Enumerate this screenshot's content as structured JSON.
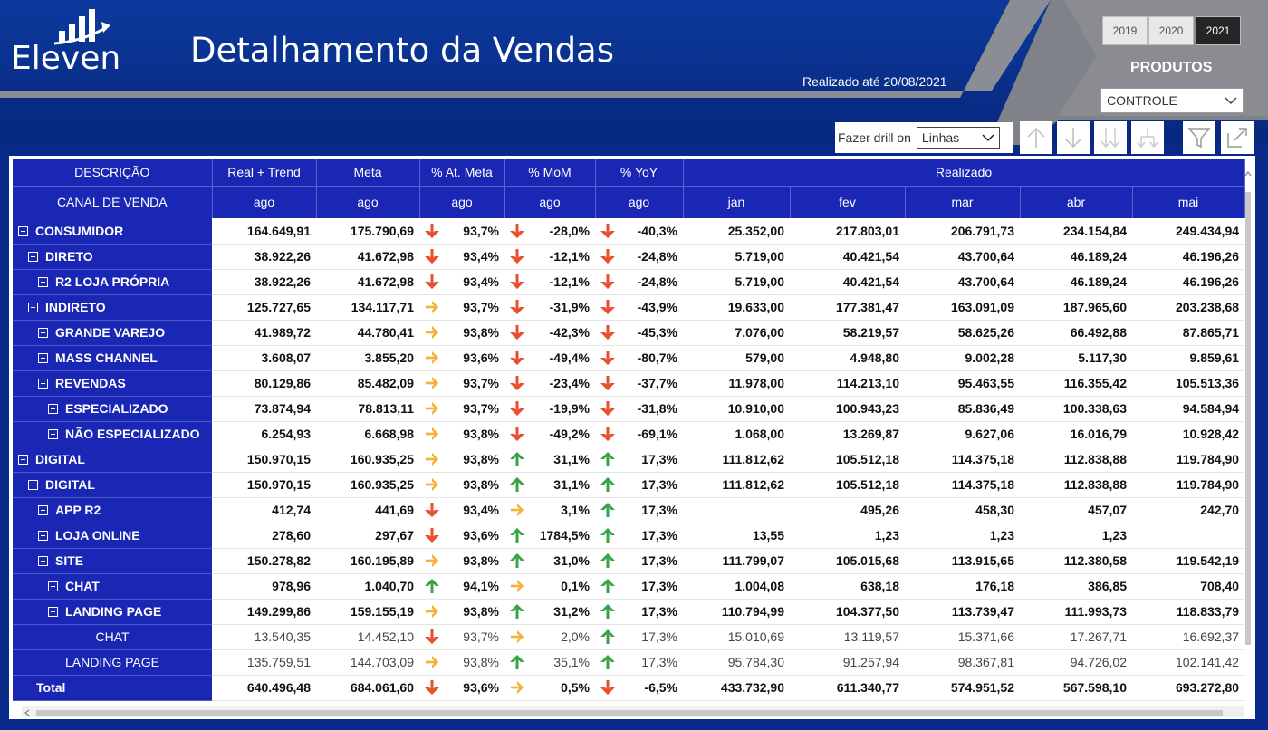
{
  "brand": {
    "name": "Eleven"
  },
  "header": {
    "title": "Detalhamento da Vendas",
    "realizado": "Realizado até 20/08/2021"
  },
  "years": [
    "2019",
    "2020",
    "2021"
  ],
  "active_year": "2021",
  "produtos": {
    "label": "PRODUTOS",
    "selected": "CONTROLE"
  },
  "drill": {
    "label": "Fazer drill on",
    "selected": "Linhas"
  },
  "colors": {
    "header_blue": "#1a27b5",
    "banner": "#0c3a9c",
    "up": "#3aa34a",
    "down": "#e94e2e",
    "side": "#f5b23a"
  },
  "table": {
    "header1": [
      "DESCRIÇÃO",
      "Real + Trend",
      "Meta",
      "% At. Meta",
      "% MoM",
      "% YoY",
      "Realizado"
    ],
    "header2": [
      "CANAL DE VENDA",
      "ago",
      "ago",
      "ago",
      "ago",
      "ago",
      "jan",
      "fev",
      "mar",
      "abr",
      "mai"
    ],
    "rows": [
      {
        "label": "CONSUMIDOR",
        "level": 0,
        "exp": "minus",
        "real": "164.649,91",
        "meta": "175.790,69",
        "at_arrow": "down",
        "at": "93,7%",
        "mom_arrow": "down",
        "mom": "-28,0%",
        "yoy_arrow": "down",
        "yoy": "-40,3%",
        "jan": "25.352,00",
        "fev": "217.803,01",
        "mar": "206.791,73",
        "abr": "234.154,84",
        "mai": "249.434,94"
      },
      {
        "label": "DIRETO",
        "level": 1,
        "exp": "minus",
        "real": "38.922,26",
        "meta": "41.672,98",
        "at_arrow": "down",
        "at": "93,4%",
        "mom_arrow": "down",
        "mom": "-12,1%",
        "yoy_arrow": "down",
        "yoy": "-24,8%",
        "jan": "5.719,00",
        "fev": "40.421,54",
        "mar": "43.700,64",
        "abr": "46.189,24",
        "mai": "46.196,26"
      },
      {
        "label": "R2 LOJA PRÓPRIA",
        "level": 2,
        "exp": "plus",
        "real": "38.922,26",
        "meta": "41.672,98",
        "at_arrow": "down",
        "at": "93,4%",
        "mom_arrow": "down",
        "mom": "-12,1%",
        "yoy_arrow": "down",
        "yoy": "-24,8%",
        "jan": "5.719,00",
        "fev": "40.421,54",
        "mar": "43.700,64",
        "abr": "46.189,24",
        "mai": "46.196,26"
      },
      {
        "label": "INDIRETO",
        "level": 1,
        "exp": "minus",
        "real": "125.727,65",
        "meta": "134.117,71",
        "at_arrow": "side",
        "at": "93,7%",
        "mom_arrow": "down",
        "mom": "-31,9%",
        "yoy_arrow": "down",
        "yoy": "-43,9%",
        "jan": "19.633,00",
        "fev": "177.381,47",
        "mar": "163.091,09",
        "abr": "187.965,60",
        "mai": "203.238,68"
      },
      {
        "label": "GRANDE VAREJO",
        "level": 2,
        "exp": "plus",
        "real": "41.989,72",
        "meta": "44.780,41",
        "at_arrow": "side",
        "at": "93,8%",
        "mom_arrow": "down",
        "mom": "-42,3%",
        "yoy_arrow": "down",
        "yoy": "-45,3%",
        "jan": "7.076,00",
        "fev": "58.219,57",
        "mar": "58.625,26",
        "abr": "66.492,88",
        "mai": "87.865,71"
      },
      {
        "label": "MASS CHANNEL",
        "level": 2,
        "exp": "plus",
        "real": "3.608,07",
        "meta": "3.855,20",
        "at_arrow": "side",
        "at": "93,6%",
        "mom_arrow": "down",
        "mom": "-49,4%",
        "yoy_arrow": "down",
        "yoy": "-80,7%",
        "jan": "579,00",
        "fev": "4.948,80",
        "mar": "9.002,28",
        "abr": "5.117,30",
        "mai": "9.859,61"
      },
      {
        "label": "REVENDAS",
        "level": 2,
        "exp": "minus",
        "real": "80.129,86",
        "meta": "85.482,09",
        "at_arrow": "side",
        "at": "93,7%",
        "mom_arrow": "down",
        "mom": "-23,4%",
        "yoy_arrow": "down",
        "yoy": "-37,7%",
        "jan": "11.978,00",
        "fev": "114.213,10",
        "mar": "95.463,55",
        "abr": "116.355,42",
        "mai": "105.513,36"
      },
      {
        "label": "ESPECIALIZADO",
        "level": 3,
        "exp": "plus",
        "real": "73.874,94",
        "meta": "78.813,11",
        "at_arrow": "side",
        "at": "93,7%",
        "mom_arrow": "down",
        "mom": "-19,9%",
        "yoy_arrow": "down",
        "yoy": "-31,8%",
        "jan": "10.910,00",
        "fev": "100.943,23",
        "mar": "85.836,49",
        "abr": "100.338,63",
        "mai": "94.584,94"
      },
      {
        "label": "NÃO ESPECIALIZADO",
        "level": 3,
        "exp": "plus",
        "real": "6.254,93",
        "meta": "6.668,98",
        "at_arrow": "side",
        "at": "93,8%",
        "mom_arrow": "down",
        "mom": "-49,2%",
        "yoy_arrow": "down",
        "yoy": "-69,1%",
        "jan": "1.068,00",
        "fev": "13.269,87",
        "mar": "9.627,06",
        "abr": "16.016,79",
        "mai": "10.928,42"
      },
      {
        "label": "DIGITAL",
        "level": 0,
        "exp": "minus",
        "real": "150.970,15",
        "meta": "160.935,25",
        "at_arrow": "side",
        "at": "93,8%",
        "mom_arrow": "up",
        "mom": "31,1%",
        "yoy_arrow": "up",
        "yoy": "17,3%",
        "jan": "111.812,62",
        "fev": "105.512,18",
        "mar": "114.375,18",
        "abr": "112.838,88",
        "mai": "119.784,90"
      },
      {
        "label": "DIGITAL",
        "level": 1,
        "exp": "minus",
        "real": "150.970,15",
        "meta": "160.935,25",
        "at_arrow": "side",
        "at": "93,8%",
        "mom_arrow": "up",
        "mom": "31,1%",
        "yoy_arrow": "up",
        "yoy": "17,3%",
        "jan": "111.812,62",
        "fev": "105.512,18",
        "mar": "114.375,18",
        "abr": "112.838,88",
        "mai": "119.784,90"
      },
      {
        "label": "APP R2",
        "level": 2,
        "exp": "plus",
        "real": "412,74",
        "meta": "441,69",
        "at_arrow": "down",
        "at": "93,4%",
        "mom_arrow": "side",
        "mom": "3,1%",
        "yoy_arrow": "up",
        "yoy": "17,3%",
        "jan": "",
        "fev": "495,26",
        "mar": "458,30",
        "abr": "457,07",
        "mai": "242,70"
      },
      {
        "label": "LOJA ONLINE",
        "level": 2,
        "exp": "plus",
        "real": "278,60",
        "meta": "297,67",
        "at_arrow": "down",
        "at": "93,6%",
        "mom_arrow": "up",
        "mom": "1784,5%",
        "yoy_arrow": "up",
        "yoy": "17,3%",
        "jan": "13,55",
        "fev": "1,23",
        "mar": "1,23",
        "abr": "1,23",
        "mai": ""
      },
      {
        "label": "SITE",
        "level": 2,
        "exp": "minus",
        "real": "150.278,82",
        "meta": "160.195,89",
        "at_arrow": "side",
        "at": "93,8%",
        "mom_arrow": "up",
        "mom": "31,0%",
        "yoy_arrow": "up",
        "yoy": "17,3%",
        "jan": "111.799,07",
        "fev": "105.015,68",
        "mar": "113.915,65",
        "abr": "112.380,58",
        "mai": "119.542,19"
      },
      {
        "label": "CHAT",
        "level": 3,
        "exp": "plus",
        "real": "978,96",
        "meta": "1.040,70",
        "at_arrow": "up",
        "at": "94,1%",
        "mom_arrow": "side",
        "mom": "0,1%",
        "yoy_arrow": "up",
        "yoy": "17,3%",
        "jan": "1.004,08",
        "fev": "638,18",
        "mar": "176,18",
        "abr": "386,85",
        "mai": "708,40"
      },
      {
        "label": "LANDING PAGE",
        "level": 3,
        "exp": "minus",
        "real": "149.299,86",
        "meta": "159.155,19",
        "at_arrow": "side",
        "at": "93,8%",
        "mom_arrow": "up",
        "mom": "31,2%",
        "yoy_arrow": "up",
        "yoy": "17,3%",
        "jan": "110.794,99",
        "fev": "104.377,50",
        "mar": "113.739,47",
        "abr": "111.993,73",
        "mai": "118.833,79"
      },
      {
        "label": "CHAT",
        "level": 4,
        "exp": "none",
        "plain": true,
        "real": "13.540,35",
        "meta": "14.452,10",
        "at_arrow": "down",
        "at": "93,7%",
        "mom_arrow": "side",
        "mom": "2,0%",
        "yoy_arrow": "up",
        "yoy": "17,3%",
        "jan": "15.010,69",
        "fev": "13.119,57",
        "mar": "15.371,66",
        "abr": "17.267,71",
        "mai": "16.692,37"
      },
      {
        "label": "LANDING PAGE",
        "level": 4,
        "exp": "none",
        "plain": true,
        "real": "135.759,51",
        "meta": "144.703,09",
        "at_arrow": "side",
        "at": "93,8%",
        "mom_arrow": "up",
        "mom": "35,1%",
        "yoy_arrow": "up",
        "yoy": "17,3%",
        "jan": "95.784,30",
        "fev": "91.257,94",
        "mar": "98.367,81",
        "abr": "94.726,02",
        "mai": "102.141,42"
      }
    ],
    "total": {
      "label": "Total",
      "real": "640.496,48",
      "meta": "684.061,60",
      "at_arrow": "down",
      "at": "93,6%",
      "mom_arrow": "side",
      "mom": "0,5%",
      "yoy_arrow": "down",
      "yoy": "-6,5%",
      "jan": "433.732,90",
      "fev": "611.340,77",
      "mar": "574.951,52",
      "abr": "567.598,10",
      "mai": "693.272,80"
    }
  }
}
